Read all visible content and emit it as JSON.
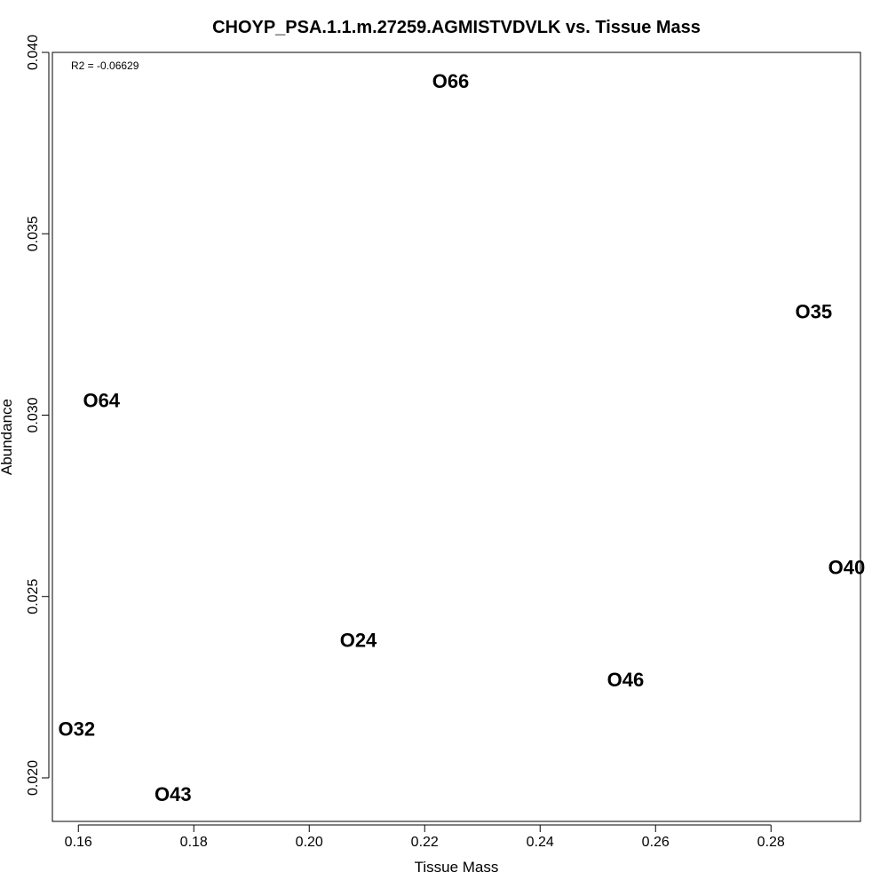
{
  "chart_data": {
    "type": "scatter",
    "title": "CHOYP_PSA.1.1.m.27259.AGMISTVDVLK vs. Tissue Mass",
    "xlabel": "Tissue Mass",
    "ylabel": "Abundance",
    "xlim": [
      0.1555,
      0.2955
    ],
    "ylim": [
      0.0188,
      0.04
    ],
    "xticks": [
      0.16,
      0.18,
      0.2,
      0.22,
      0.24,
      0.26,
      0.28
    ],
    "xtick_labels": [
      "0.16",
      "0.18",
      "0.20",
      "0.22",
      "0.24",
      "0.26",
      "0.28"
    ],
    "yticks": [
      0.02,
      0.025,
      0.03,
      0.035,
      0.04
    ],
    "ytick_labels": [
      "0.020",
      "0.025",
      "0.030",
      "0.035",
      "0.040"
    ],
    "annotation": "R2 = -0.06629",
    "grid": false,
    "points": [
      {
        "label": "O66",
        "x": 0.2245,
        "y": 0.0392
      },
      {
        "label": "O35",
        "x": 0.2874,
        "y": 0.03285
      },
      {
        "label": "O64",
        "x": 0.164,
        "y": 0.0304
      },
      {
        "label": "O40",
        "x": 0.2931,
        "y": 0.0258
      },
      {
        "label": "O24",
        "x": 0.2085,
        "y": 0.0238
      },
      {
        "label": "O46",
        "x": 0.2548,
        "y": 0.0227
      },
      {
        "label": "O32",
        "x": 0.1597,
        "y": 0.02135
      },
      {
        "label": "O43",
        "x": 0.1764,
        "y": 0.01955
      }
    ]
  }
}
